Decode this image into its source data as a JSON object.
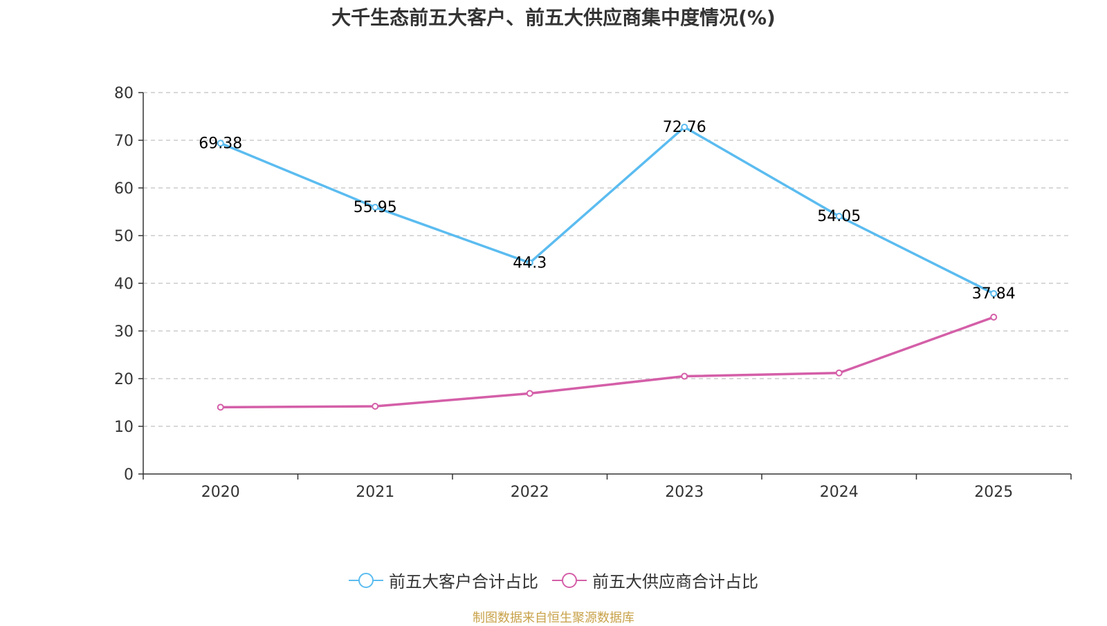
{
  "chart_data": {
    "type": "line",
    "title": "大千生态前五大客户、前五大供应商集中度情况(%)",
    "categories": [
      "2020",
      "2021",
      "2022",
      "2023",
      "2024",
      "2025"
    ],
    "ylim": [
      0,
      80
    ],
    "yticks": [
      0,
      10,
      20,
      30,
      40,
      50,
      60,
      70,
      80
    ],
    "grid": true,
    "legend_position": "bottom",
    "series": [
      {
        "name": "前五大客户合计占比",
        "color": "#5bbcf0",
        "values": [
          69.38,
          55.95,
          44.3,
          72.76,
          54.05,
          37.84
        ],
        "labels": [
          "69.38",
          "55.95",
          "44.3",
          "72.76",
          "54.05",
          "37.84"
        ],
        "show_labels": true
      },
      {
        "name": "前五大供应商合计占比",
        "color": "#d45fa8",
        "values": [
          14.0,
          14.2,
          16.9,
          20.5,
          21.2,
          32.9
        ],
        "show_labels": false
      }
    ]
  },
  "source_text": "制图数据来自恒生聚源数据库",
  "source_color": "#c8a24a"
}
